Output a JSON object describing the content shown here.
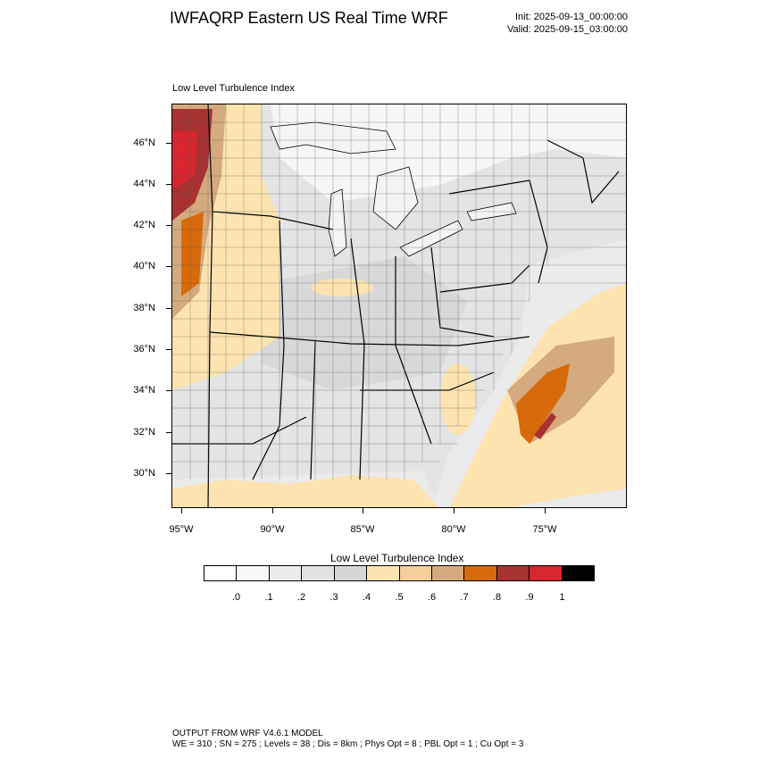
{
  "header": {
    "title": "IWFAQRP Eastern US Real Time WRF",
    "init": "Init: 2025-09-13_00:00:00",
    "valid": "Valid: 2025-09-15_03:00:00"
  },
  "map": {
    "field_label": "Low Level Turbulence Index",
    "lat_labels": [
      "46°N",
      "44°N",
      "42°N",
      "40°N",
      "38°N",
      "36°N",
      "34°N",
      "32°N",
      "30°N"
    ],
    "lon_labels": [
      "95°W",
      "90°W",
      "85°W",
      "80°W",
      "75°W"
    ],
    "colors": {
      "background": "#f6f6f6",
      "land_low": "#e6e6e6",
      "land_mid": "#d8d8d8",
      "water": "#f4f4f4",
      "light_tan": "#fde3b0",
      "tan": "#f6cf9a",
      "brown_tan": "#d4aa7e",
      "orange": "#d76a0a",
      "dark_red": "#a83232",
      "red": "#d8262e"
    }
  },
  "colorbar": {
    "title": "Low Level Turbulence Index",
    "colors": [
      "#ffffff",
      "#f7f7f7",
      "#ececec",
      "#e2e2e2",
      "#d6d6d6",
      "#fde3b0",
      "#f6cf9a",
      "#d4aa7e",
      "#d76a0a",
      "#a83232",
      "#d8262e",
      "#000000"
    ],
    "labels": [
      ".0",
      ".1",
      ".2",
      ".3",
      ".4",
      ".5",
      ".6",
      ".7",
      ".8",
      ".9",
      "1"
    ]
  },
  "footer": {
    "line1": "OUTPUT FROM WRF V4.6.1 MODEL",
    "line2": "WE = 310 ; SN = 275 ; Levels = 38 ; Dis = 8km ; Phys Opt = 8 ; PBL Opt = 1 ; Cu Opt = 3"
  }
}
